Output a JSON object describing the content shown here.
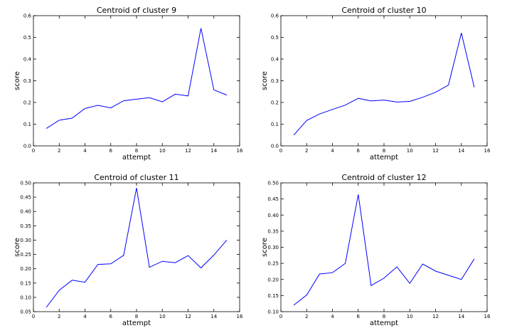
{
  "chart_data": [
    {
      "type": "line",
      "title": "Centroid of cluster 9",
      "xlabel": "attempt",
      "ylabel": "score",
      "xlim": [
        0,
        16
      ],
      "ylim": [
        0.0,
        0.6
      ],
      "xticks": [
        "0",
        "2",
        "4",
        "6",
        "8",
        "10",
        "12",
        "14",
        "16"
      ],
      "yticks": [
        "0.0",
        "0.1",
        "0.2",
        "0.3",
        "0.4",
        "0.5",
        "0.6"
      ],
      "grid": false,
      "line_color": "#0000ff",
      "x": [
        1,
        2,
        3,
        4,
        5,
        6,
        7,
        8,
        9,
        10,
        11,
        12,
        13,
        14,
        15
      ],
      "y": [
        0.08,
        0.118,
        0.128,
        0.172,
        0.187,
        0.175,
        0.208,
        0.215,
        0.222,
        0.203,
        0.238,
        0.23,
        0.542,
        0.258,
        0.234
      ]
    },
    {
      "type": "line",
      "title": "Centroid of cluster 10",
      "xlabel": "attempt",
      "ylabel": "score",
      "xlim": [
        0,
        16
      ],
      "ylim": [
        0.0,
        0.6
      ],
      "xticks": [
        "0",
        "2",
        "4",
        "6",
        "8",
        "10",
        "12",
        "14",
        "16"
      ],
      "yticks": [
        "0.0",
        "0.1",
        "0.2",
        "0.3",
        "0.4",
        "0.5",
        "0.6"
      ],
      "grid": false,
      "line_color": "#0000ff",
      "x": [
        1,
        2,
        3,
        4,
        5,
        6,
        7,
        8,
        9,
        10,
        11,
        12,
        13,
        14,
        15
      ],
      "y": [
        0.05,
        0.117,
        0.147,
        0.168,
        0.188,
        0.219,
        0.207,
        0.211,
        0.202,
        0.205,
        0.224,
        0.247,
        0.28,
        0.52,
        0.27
      ]
    },
    {
      "type": "line",
      "title": "Centroid of cluster 11",
      "xlabel": "attempt",
      "ylabel": "score",
      "xlim": [
        0,
        16
      ],
      "ylim": [
        0.05,
        0.5
      ],
      "xticks": [
        "0",
        "2",
        "4",
        "6",
        "8",
        "10",
        "12",
        "14",
        "16"
      ],
      "yticks": [
        "0.05",
        "0.10",
        "0.15",
        "0.20",
        "0.25",
        "0.30",
        "0.35",
        "0.40",
        "0.45",
        "0.50"
      ],
      "grid": false,
      "line_color": "#0000ff",
      "x": [
        1,
        2,
        3,
        4,
        5,
        6,
        7,
        8,
        9,
        10,
        11,
        12,
        13,
        14,
        15
      ],
      "y": [
        0.065,
        0.125,
        0.16,
        0.153,
        0.215,
        0.217,
        0.247,
        0.482,
        0.205,
        0.226,
        0.221,
        0.246,
        0.203,
        0.248,
        0.3
      ]
    },
    {
      "type": "line",
      "title": "Centroid of cluster 12",
      "xlabel": "attempt",
      "ylabel": "score",
      "xlim": [
        0,
        16
      ],
      "ylim": [
        0.1,
        0.5
      ],
      "xticks": [
        "0",
        "2",
        "4",
        "6",
        "8",
        "10",
        "12",
        "14",
        "16"
      ],
      "yticks": [
        "0.10",
        "0.15",
        "0.20",
        "0.25",
        "0.30",
        "0.35",
        "0.40",
        "0.45",
        "0.50"
      ],
      "grid": false,
      "line_color": "#0000ff",
      "x": [
        1,
        2,
        3,
        4,
        5,
        6,
        7,
        8,
        9,
        10,
        11,
        12,
        13,
        14,
        15
      ],
      "y": [
        0.12,
        0.152,
        0.217,
        0.221,
        0.25,
        0.464,
        0.181,
        0.204,
        0.239,
        0.188,
        0.248,
        0.226,
        0.213,
        0.2,
        0.264
      ]
    }
  ]
}
